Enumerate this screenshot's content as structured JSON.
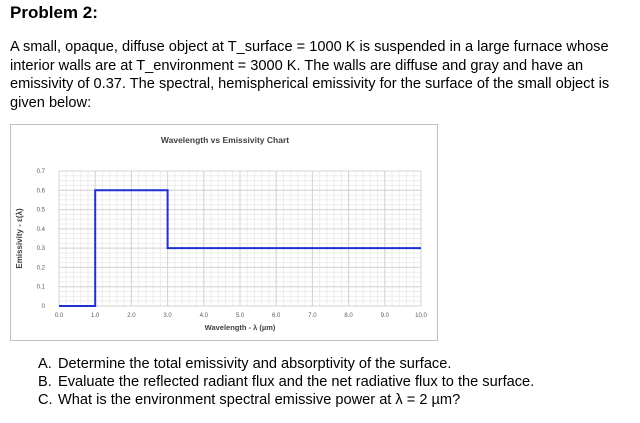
{
  "document": {
    "title": "Problem 2:",
    "statement": "A small, opaque, diffuse object at T_surface = 1000 K is suspended in a large furnace whose interior walls are at T_environment = 3000 K. The walls are diffuse and gray and have an emissivity of 0.37. The spectral, hemispherical emissivity for the surface of the small object is given below:",
    "questions": [
      {
        "letter": "A.",
        "text": "Determine the total emissivity and absorptivity of the surface."
      },
      {
        "letter": "B.",
        "text": "Evaluate the reflected radiant flux and the net radiative flux to the surface."
      },
      {
        "letter": "C.",
        "text": "What is the environment spectral emissive power at λ = 2 µm?"
      }
    ]
  },
  "chart_data": {
    "type": "line",
    "title": "Wavelength vs Emissivity Chart",
    "xlabel": "Wavelength - λ (µm)",
    "ylabel": "Emissivity - ε(λ)",
    "xlim": [
      0,
      10
    ],
    "ylim": [
      0,
      0.7
    ],
    "xticks": [
      "0.0",
      "1.0",
      "2.0",
      "3.0",
      "4.0",
      "5.0",
      "6.0",
      "7.0",
      "8.0",
      "9.0",
      "10.0"
    ],
    "yticks": [
      "0",
      "0.1",
      "0.2",
      "0.3",
      "0.4",
      "0.5",
      "0.6",
      "0.7"
    ],
    "grid": true,
    "legend": "none",
    "series": [
      {
        "color": "#1f2fd1",
        "x": [
          0,
          1,
          1,
          3,
          3,
          10
        ],
        "y": [
          0,
          0,
          0.6,
          0.6,
          0.3,
          0.3
        ]
      }
    ]
  }
}
